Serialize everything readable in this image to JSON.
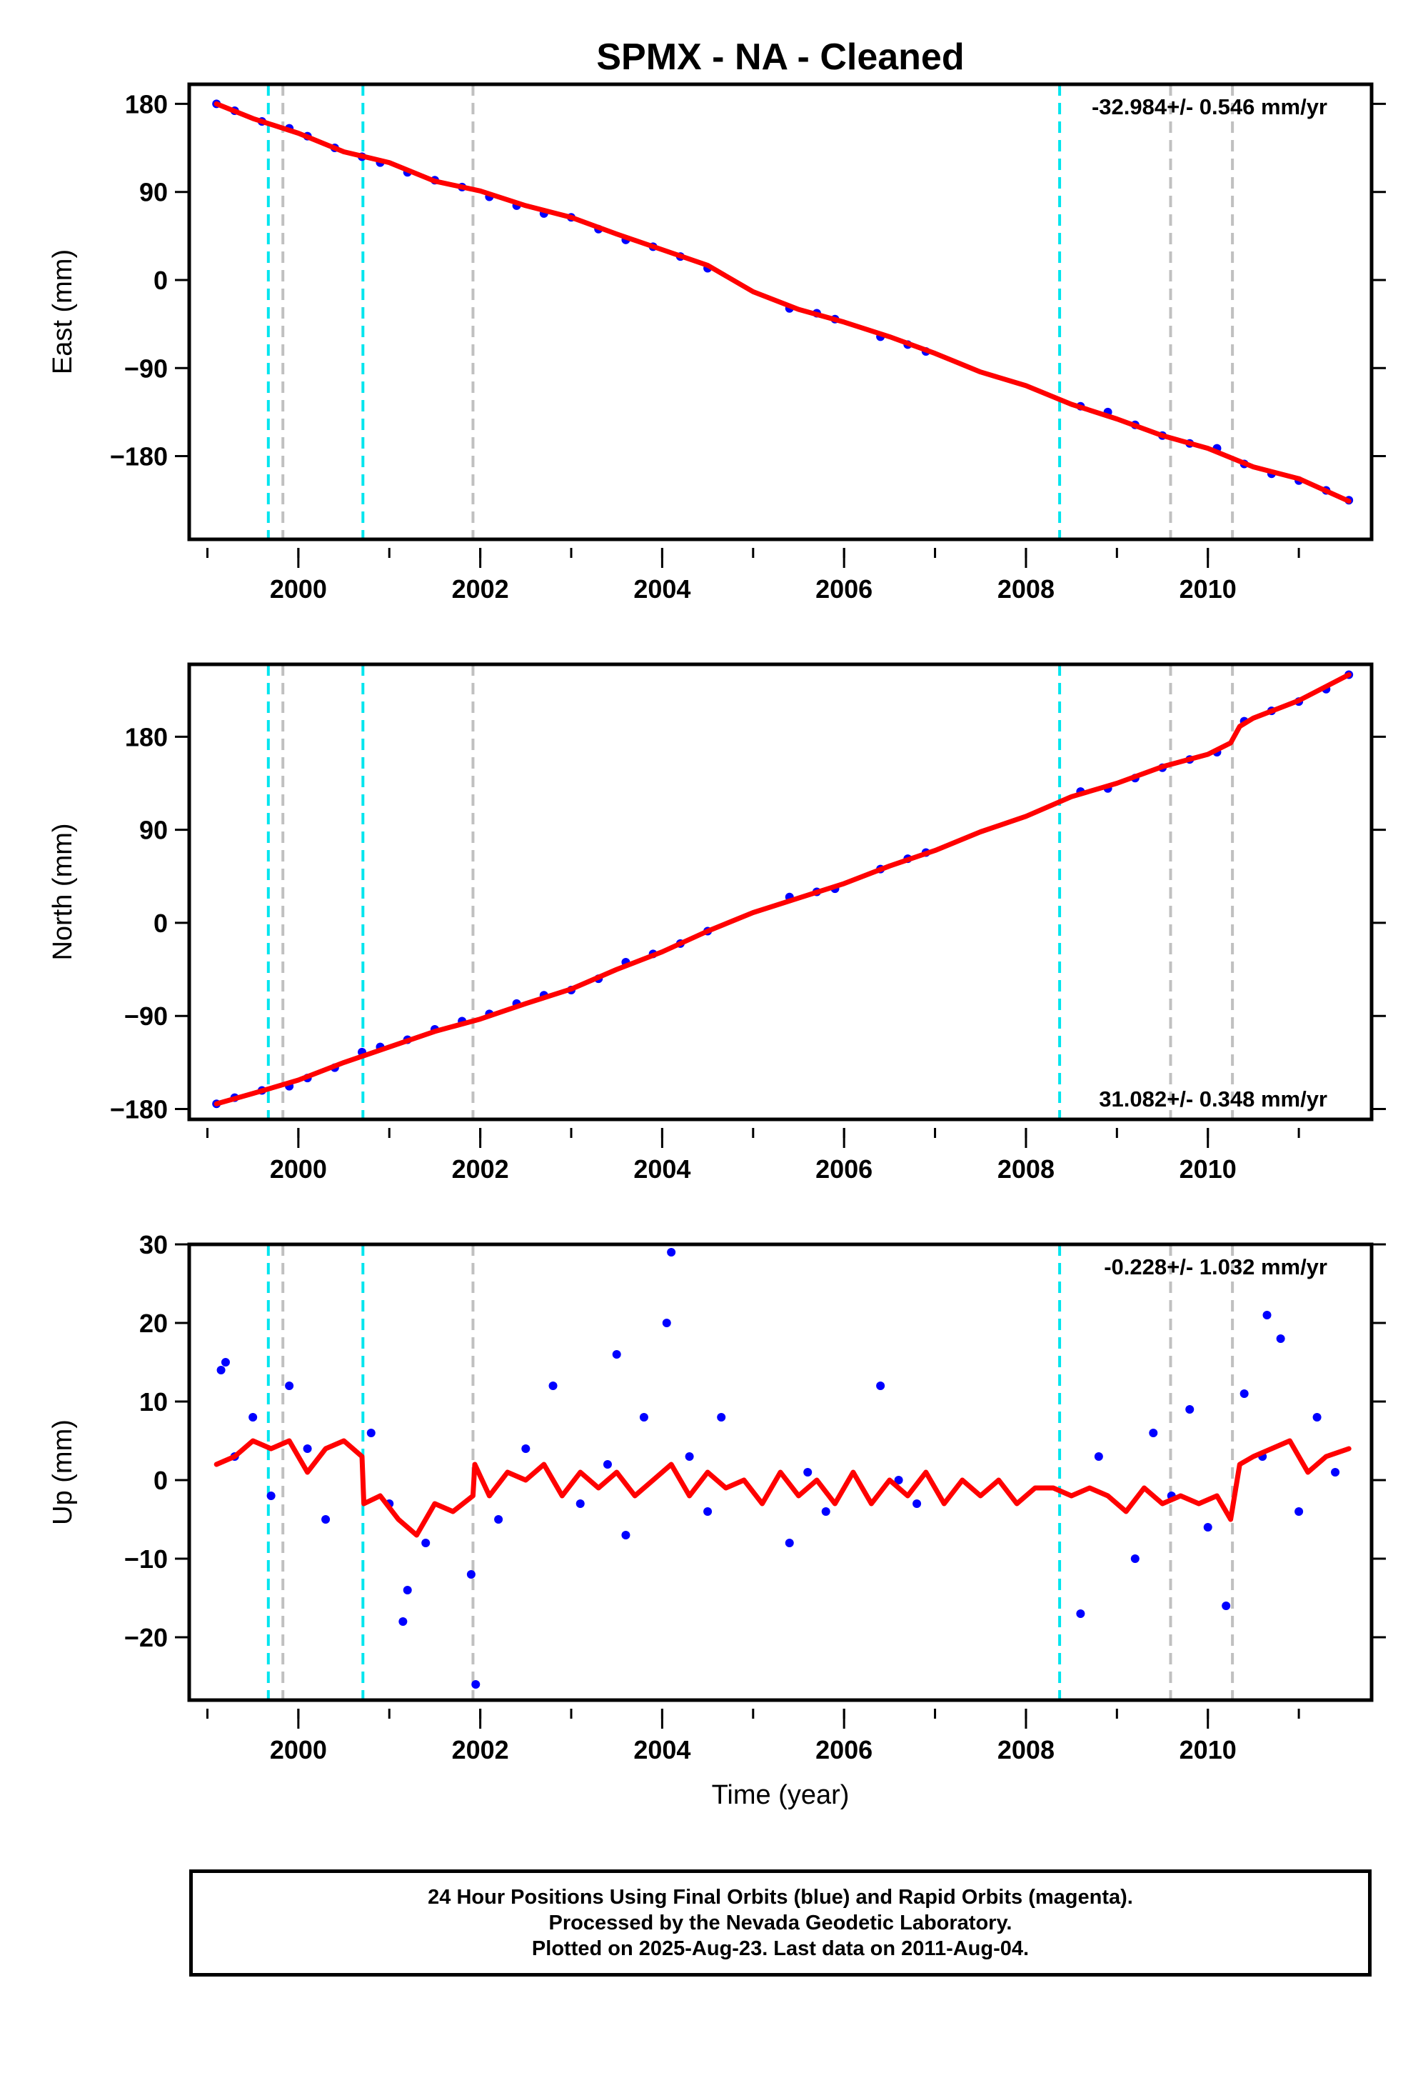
{
  "title": "SPMX  - NA - Cleaned",
  "chart_data": [
    {
      "type": "scatter",
      "panel": "east",
      "ylabel": "East (mm)",
      "xlabel": "",
      "xlim": [
        1998.8,
        2011.8
      ],
      "ylim": [
        -265,
        200
      ],
      "xticks": [
        2000,
        2002,
        2004,
        2006,
        2008,
        2010
      ],
      "yticks": [
        -180,
        -90,
        0,
        90,
        180
      ],
      "ytick_labels": [
        "−180",
        "−90",
        "0",
        "90",
        "180"
      ],
      "rate_label": "-32.984+/- 0.546 mm/yr",
      "rate_position": "top-right",
      "series": [
        {
          "name": "",
          "kind": "points",
          "color": "#0000ff",
          "x": [
            1999.1,
            1999.3,
            1999.6,
            1999.9,
            2000.1,
            2000.4,
            2000.7,
            2000.9,
            2001.2,
            2001.5,
            2001.8,
            2002.1,
            2002.4,
            2002.7,
            2003.0,
            2003.3,
            2003.6,
            2003.9,
            2004.2,
            2004.5,
            2005.4,
            2005.7,
            2005.9,
            2006.4,
            2006.7,
            2006.9,
            2008.6,
            2008.9,
            2009.2,
            2009.5,
            2009.8,
            2010.1,
            2010.4,
            2010.7,
            2011.0,
            2011.3,
            2011.55
          ],
          "y": [
            180,
            173,
            162,
            155,
            147,
            135,
            126,
            120,
            110,
            102,
            95,
            85,
            76,
            68,
            64,
            52,
            41,
            34,
            24,
            12,
            -29,
            -34,
            -40,
            -58,
            -66,
            -73,
            -129,
            -135,
            -148,
            -159,
            -167,
            -172,
            -188,
            -198,
            -205,
            -215,
            -225
          ]
        },
        {
          "name": "",
          "kind": "line",
          "color": "#ff0000",
          "x": [
            1999.1,
            1999.5,
            2000.0,
            2000.5,
            2001.0,
            2001.5,
            2002.0,
            2002.5,
            2003.0,
            2003.5,
            2004.0,
            2004.5,
            2005.0,
            2005.5,
            2006.0,
            2006.5,
            2007.0,
            2007.5,
            2008.0,
            2008.5,
            2009.0,
            2009.5,
            2010.0,
            2010.5,
            2011.0,
            2011.55
          ],
          "y": [
            180,
            165,
            150,
            131,
            120,
            101,
            91,
            76,
            64,
            47,
            31,
            15,
            -12,
            -30,
            -43,
            -58,
            -75,
            -94,
            -108,
            -127,
            -142,
            -159,
            -172,
            -191,
            -203,
            -226
          ]
        }
      ],
      "events": [
        {
          "x": 1999.67,
          "color": "#00e5ee"
        },
        {
          "x": 1999.83,
          "color": "#c0c0c0"
        },
        {
          "x": 2000.71,
          "color": "#00e5ee"
        },
        {
          "x": 2001.92,
          "color": "#c0c0c0"
        },
        {
          "x": 2008.37,
          "color": "#00e5ee"
        },
        {
          "x": 2009.59,
          "color": "#c0c0c0"
        },
        {
          "x": 2010.27,
          "color": "#c0c0c0"
        }
      ]
    },
    {
      "type": "scatter",
      "panel": "north",
      "ylabel": "North (mm)",
      "xlabel": "",
      "xlim": [
        1998.8,
        2011.8
      ],
      "ylim": [
        -190,
        250
      ],
      "xticks": [
        2000,
        2002,
        2004,
        2006,
        2008,
        2010
      ],
      "yticks": [
        -180,
        -90,
        0,
        90,
        180
      ],
      "ytick_labels": [
        "−180",
        "−90",
        "0",
        "90",
        "180"
      ],
      "rate_label": "31.082+/- 0.348 mm/yr",
      "rate_position": "bottom-right",
      "series": [
        {
          "name": "",
          "kind": "points",
          "color": "#0000ff",
          "x": [
            1999.1,
            1999.3,
            1999.6,
            1999.9,
            2000.1,
            2000.4,
            2000.7,
            2000.9,
            2001.2,
            2001.5,
            2001.8,
            2002.1,
            2002.4,
            2002.7,
            2003.0,
            2003.3,
            2003.6,
            2003.9,
            2004.2,
            2004.5,
            2005.4,
            2005.7,
            2005.9,
            2006.4,
            2006.7,
            2006.9,
            2008.6,
            2008.9,
            2009.2,
            2009.5,
            2009.8,
            2010.1,
            2010.4,
            2010.7,
            2011.0,
            2011.3,
            2011.55
          ],
          "y": [
            -175,
            -169,
            -162,
            -158,
            -150,
            -140,
            -125,
            -120,
            -113,
            -103,
            -95,
            -88,
            -78,
            -70,
            -65,
            -54,
            -38,
            -30,
            -20,
            -8,
            25,
            30,
            33,
            52,
            62,
            68,
            127,
            130,
            140,
            150,
            158,
            165,
            195,
            205,
            214,
            226,
            240
          ]
        },
        {
          "name": "",
          "kind": "line",
          "color": "#ff0000",
          "x": [
            1999.1,
            1999.5,
            2000.0,
            2000.5,
            2001.0,
            2001.5,
            2002.0,
            2002.5,
            2003.0,
            2003.5,
            2004.0,
            2004.5,
            2005.0,
            2005.5,
            2006.0,
            2006.5,
            2007.0,
            2007.5,
            2008.0,
            2008.5,
            2009.0,
            2009.5,
            2010.0,
            2010.25,
            2010.35,
            2010.5,
            2011.0,
            2011.55
          ],
          "y": [
            -175,
            -165,
            -152,
            -135,
            -120,
            -105,
            -93,
            -78,
            -64,
            -45,
            -28,
            -8,
            10,
            24,
            38,
            55,
            70,
            88,
            103,
            122,
            135,
            151,
            163,
            174,
            190,
            198,
            215,
            240
          ]
        }
      ],
      "events": [
        {
          "x": 1999.67,
          "color": "#00e5ee"
        },
        {
          "x": 1999.83,
          "color": "#c0c0c0"
        },
        {
          "x": 2000.71,
          "color": "#00e5ee"
        },
        {
          "x": 2001.92,
          "color": "#c0c0c0"
        },
        {
          "x": 2008.37,
          "color": "#00e5ee"
        },
        {
          "x": 2009.59,
          "color": "#c0c0c0"
        },
        {
          "x": 2010.27,
          "color": "#c0c0c0"
        }
      ]
    },
    {
      "type": "scatter",
      "panel": "up",
      "ylabel": "Up (mm)",
      "xlabel": "Time (year)",
      "xlim": [
        1998.8,
        2011.8
      ],
      "ylim": [
        -28,
        30
      ],
      "xticks": [
        2000,
        2002,
        2004,
        2006,
        2008,
        2010
      ],
      "yticks": [
        -20,
        -10,
        0,
        10,
        20,
        30
      ],
      "ytick_labels": [
        "−20",
        "−10",
        "0",
        "10",
        "20",
        "30"
      ],
      "rate_label": "-0.228+/- 1.032 mm/yr",
      "rate_position": "top-right",
      "series": [
        {
          "name": "",
          "kind": "points",
          "color": "#0000ff",
          "x": [
            1999.15,
            1999.3,
            1999.5,
            1999.7,
            1999.9,
            2000.1,
            2000.3,
            2000.8,
            2001.0,
            2001.2,
            2001.4,
            2001.95,
            2002.2,
            2002.5,
            2002.8,
            2003.1,
            2003.4,
            2003.6,
            2003.8,
            2004.1,
            2004.3,
            2004.5,
            2004.65,
            2005.4,
            2005.6,
            2005.8,
            2006.4,
            2006.6,
            2006.8,
            2008.6,
            2008.8,
            2009.2,
            2009.4,
            2009.6,
            2009.8,
            2010.0,
            2010.2,
            2010.4,
            2010.6,
            2010.8,
            2011.0,
            2011.2,
            2011.4,
            2004.05,
            2001.9,
            1999.2,
            2010.65,
            2001.15,
            2003.5
          ],
          "y": [
            14,
            3,
            8,
            -2,
            12,
            4,
            -5,
            6,
            -3,
            -14,
            -8,
            -26,
            -5,
            4,
            12,
            -3,
            2,
            -7,
            8,
            29,
            3,
            -4,
            8,
            -8,
            1,
            -4,
            12,
            0,
            -3,
            -17,
            3,
            -10,
            6,
            -2,
            9,
            -6,
            -16,
            11,
            3,
            18,
            -4,
            8,
            1,
            20,
            -12,
            15,
            21,
            -18,
            16
          ]
        },
        {
          "name": "",
          "kind": "line",
          "color": "#ff0000",
          "x": [
            1999.1,
            1999.3,
            1999.5,
            1999.7,
            1999.9,
            2000.1,
            2000.3,
            2000.5,
            2000.7,
            2000.72,
            2000.9,
            2001.1,
            2001.3,
            2001.5,
            2001.7,
            2001.92,
            2001.94,
            2002.1,
            2002.3,
            2002.5,
            2002.7,
            2002.9,
            2003.1,
            2003.3,
            2003.5,
            2003.7,
            2003.9,
            2004.1,
            2004.3,
            2004.5,
            2004.7,
            2004.9,
            2005.1,
            2005.3,
            2005.5,
            2005.7,
            2005.9,
            2006.1,
            2006.3,
            2006.5,
            2006.7,
            2006.9,
            2007.1,
            2007.3,
            2007.5,
            2007.7,
            2007.9,
            2008.1,
            2008.3,
            2008.5,
            2008.7,
            2008.9,
            2009.1,
            2009.3,
            2009.5,
            2009.7,
            2009.9,
            2010.1,
            2010.25,
            2010.35,
            2010.5,
            2010.7,
            2010.9,
            2011.1,
            2011.3,
            2011.55
          ],
          "y": [
            2,
            3,
            5,
            4,
            5,
            1,
            4,
            5,
            3,
            -3,
            -2,
            -5,
            -7,
            -3,
            -4,
            -2,
            2,
            -2,
            1,
            0,
            2,
            -2,
            1,
            -1,
            1,
            -2,
            0,
            2,
            -2,
            1,
            -1,
            0,
            -3,
            1,
            -2,
            0,
            -3,
            1,
            -3,
            0,
            -2,
            1,
            -3,
            0,
            -2,
            0,
            -3,
            -1,
            -1,
            -2,
            -1,
            -2,
            -4,
            -1,
            -3,
            -2,
            -3,
            -2,
            -5,
            2,
            3,
            4,
            5,
            1,
            3,
            4
          ]
        }
      ],
      "events": [
        {
          "x": 1999.67,
          "color": "#00e5ee"
        },
        {
          "x": 1999.83,
          "color": "#c0c0c0"
        },
        {
          "x": 2000.71,
          "color": "#00e5ee"
        },
        {
          "x": 2001.92,
          "color": "#c0c0c0"
        },
        {
          "x": 2008.37,
          "color": "#00e5ee"
        },
        {
          "x": 2009.59,
          "color": "#c0c0c0"
        },
        {
          "x": 2010.27,
          "color": "#c0c0c0"
        }
      ]
    }
  ],
  "footer": {
    "line1": "24 Hour Positions Using Final Orbits (blue) and Rapid Orbits (magenta).",
    "line2": "Processed by the Nevada Geodetic Laboratory.",
    "line3": "Plotted on 2025-Aug-23. Last data on 2011-Aug-04."
  }
}
